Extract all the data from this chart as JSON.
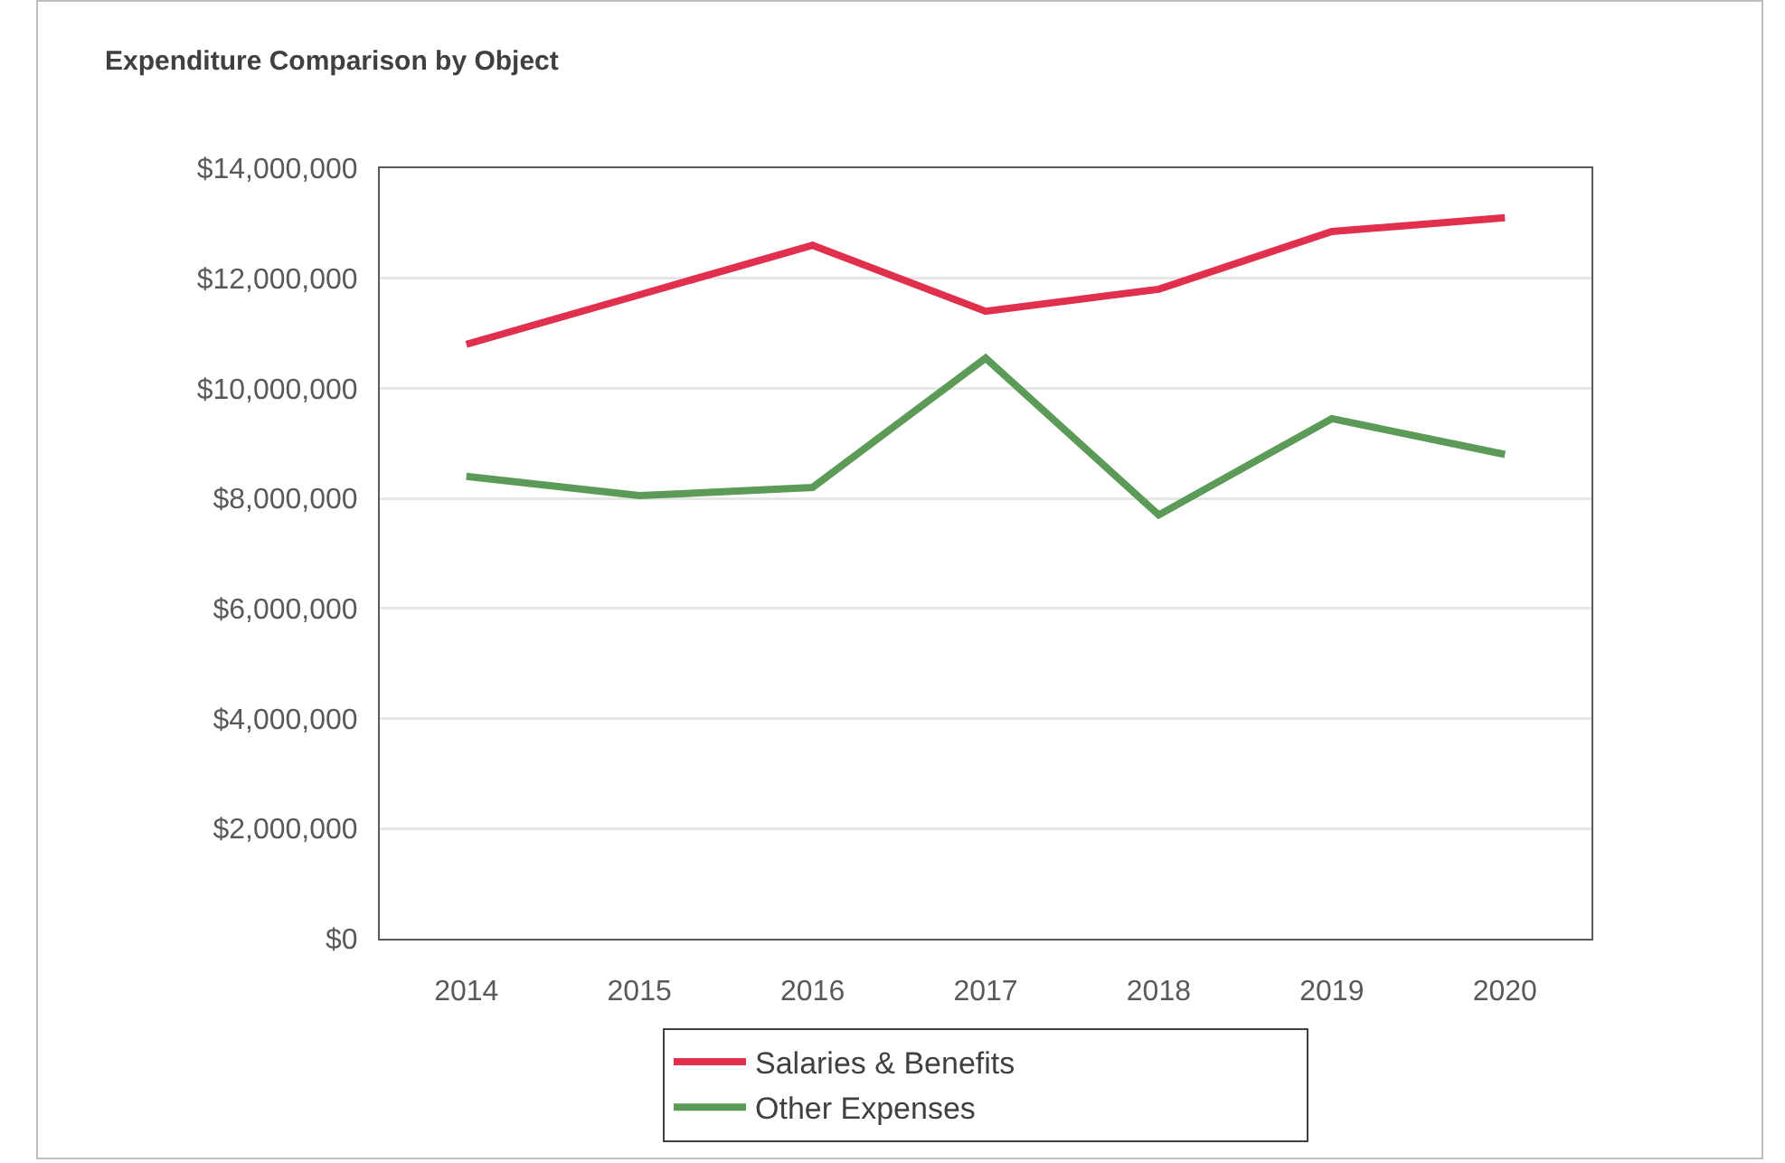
{
  "chart_data": {
    "type": "line",
    "title": "Expenditure Comparison by Object",
    "categories": [
      "2014",
      "2015",
      "2016",
      "2017",
      "2018",
      "2019",
      "2020"
    ],
    "series": [
      {
        "name": "Salaries & Benefits",
        "color": "#e0304e",
        "values": [
          10800000,
          11700000,
          12600000,
          11400000,
          11800000,
          12850000,
          13100000
        ]
      },
      {
        "name": "Other Expenses",
        "color": "#5b9a57",
        "values": [
          8400000,
          8050000,
          8200000,
          10550000,
          7700000,
          9450000,
          8800000
        ]
      }
    ],
    "ylim": [
      0,
      14000000
    ],
    "yticks": [
      {
        "value": 0,
        "label": "$0"
      },
      {
        "value": 2000000,
        "label": "$2,000,000"
      },
      {
        "value": 4000000,
        "label": "$4,000,000"
      },
      {
        "value": 6000000,
        "label": "$6,000,000"
      },
      {
        "value": 8000000,
        "label": "$8,000,000"
      },
      {
        "value": 10000000,
        "label": "$10,000,000"
      },
      {
        "value": 12000000,
        "label": "$12,000,000"
      },
      {
        "value": 14000000,
        "label": "$14,000,000"
      }
    ],
    "grid": "y",
    "legend": "bottom",
    "marker": "none",
    "line_style": "solid"
  }
}
